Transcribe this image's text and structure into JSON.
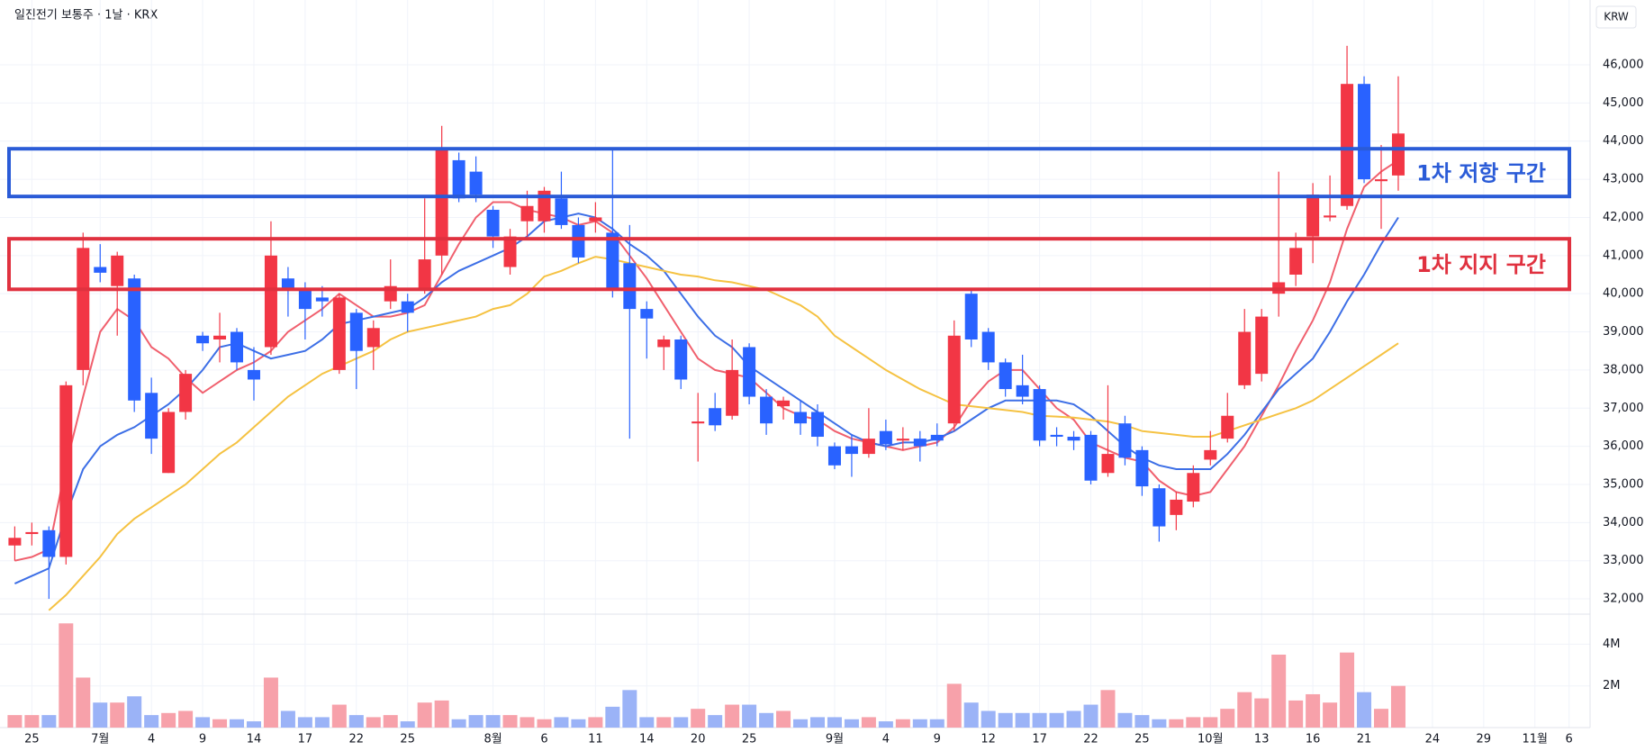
{
  "header": {
    "title": "일진전기 보통주 · 1날 · KRX",
    "currency": "KRW"
  },
  "chart_data": {
    "type": "candlestick",
    "categories": [
      null,
      "25",
      null,
      null,
      null,
      "7월",
      null,
      null,
      "4",
      null,
      null,
      "9",
      null,
      null,
      "14",
      null,
      null,
      "17",
      null,
      null,
      "22",
      null,
      null,
      "25",
      null,
      null,
      null,
      null,
      "8월",
      null,
      null,
      "6",
      null,
      null,
      "11",
      null,
      null,
      "14",
      null,
      null,
      "20",
      null,
      null,
      "25",
      null,
      null,
      null,
      null,
      "9월",
      null,
      null,
      "4",
      null,
      null,
      "9",
      null,
      null,
      "12",
      null,
      null,
      "17",
      null,
      null,
      "22",
      null,
      null,
      "25",
      null,
      null,
      null,
      "10월",
      null,
      null,
      "13",
      null,
      null,
      "16",
      null,
      null,
      "21",
      null,
      null,
      null,
      "24",
      null,
      null,
      "29",
      null,
      null,
      "11월",
      null,
      "6"
    ],
    "open": [
      33400,
      33700,
      33800,
      33100,
      38000,
      40700,
      40200,
      40400,
      37400,
      35300,
      36900,
      38900,
      38800,
      39000,
      38000,
      38600,
      40400,
      40100,
      39900,
      38000,
      39500,
      38600,
      39800,
      39800,
      40100,
      41000,
      43500,
      43200,
      42200,
      40700,
      41900,
      41900,
      42500,
      41800,
      41900,
      41600,
      40800,
      39600,
      38600,
      38800,
      36600,
      37000,
      36800,
      38600,
      37300,
      37050,
      36900,
      36900,
      36000,
      36000,
      35800,
      36400,
      36150,
      36200,
      36300,
      36600,
      40000,
      39000,
      38200,
      37600,
      37500,
      36300,
      36250,
      36300,
      35300,
      36600,
      35900,
      34900,
      34200,
      34550,
      35650,
      36200,
      37600,
      37900,
      40000,
      40500,
      41500,
      42000,
      42300,
      45500,
      42950,
      43100,
      null,
      null,
      null,
      null,
      null,
      null,
      null,
      null,
      null,
      null
    ],
    "high": [
      33900,
      34000,
      33900,
      37700,
      41600,
      41300,
      41100,
      40500,
      37800,
      37000,
      38000,
      39000,
      39500,
      39100,
      38600,
      41900,
      40700,
      40300,
      40200,
      40000,
      39600,
      39300,
      40900,
      40000,
      42500,
      44400,
      43700,
      43600,
      42300,
      41700,
      42700,
      42800,
      43200,
      42000,
      42400,
      43800,
      41800,
      39800,
      38900,
      38900,
      37400,
      37400,
      38800,
      38700,
      37500,
      37300,
      37200,
      37100,
      36100,
      36300,
      37000,
      36700,
      36500,
      36400,
      36600,
      39300,
      40100,
      39100,
      38300,
      38400,
      37600,
      36500,
      36400,
      36400,
      37600,
      36800,
      36000,
      35000,
      34800,
      35500,
      36400,
      37400,
      39600,
      39600,
      43200,
      41600,
      42900,
      43100,
      46500,
      45700,
      43900,
      45700,
      null,
      null,
      null,
      null,
      null,
      null,
      null,
      null,
      null,
      null
    ],
    "low": [
      33000,
      33400,
      32000,
      32900,
      37600,
      40300,
      38900,
      36900,
      35800,
      35300,
      36700,
      38500,
      38200,
      38000,
      37200,
      38400,
      39400,
      38800,
      39400,
      37900,
      37500,
      38000,
      39600,
      39000,
      40000,
      40500,
      42400,
      42400,
      41200,
      40500,
      41500,
      41600,
      41700,
      40800,
      41600,
      39900,
      36200,
      38300,
      38000,
      37500,
      35600,
      36400,
      36700,
      37100,
      36300,
      36700,
      36300,
      36000,
      35400,
      35200,
      35700,
      35900,
      35900,
      35600,
      36000,
      36400,
      38600,
      38000,
      37300,
      37100,
      36000,
      36000,
      35900,
      35000,
      35200,
      35500,
      34700,
      33500,
      33800,
      34400,
      35500,
      36100,
      37500,
      37700,
      39400,
      40200,
      40800,
      41900,
      42200,
      42900,
      41700,
      42700,
      null,
      null,
      null,
      null,
      null,
      null,
      null,
      null,
      null,
      null
    ],
    "close": [
      33600,
      33750,
      33100,
      37600,
      41200,
      40550,
      41000,
      37200,
      36200,
      36900,
      37900,
      38700,
      38900,
      38200,
      37750,
      41000,
      40100,
      39600,
      39800,
      39900,
      38500,
      39100,
      40200,
      39500,
      40900,
      43800,
      42500,
      42600,
      41500,
      41500,
      42300,
      42700,
      41800,
      40950,
      42000,
      40100,
      39600,
      39350,
      38800,
      37750,
      36650,
      36550,
      38000,
      37300,
      36600,
      37200,
      36600,
      36250,
      35500,
      35800,
      36200,
      36050,
      36200,
      36000,
      36150,
      38900,
      38800,
      38200,
      37500,
      37300,
      36150,
      36250,
      36150,
      35100,
      35800,
      35700,
      34950,
      33900,
      34600,
      35300,
      35900,
      36800,
      39000,
      39400,
      40300,
      41200,
      42600,
      42050,
      45500,
      43000,
      43000,
      44200,
      null,
      null,
      null,
      null,
      null,
      null,
      null,
      null,
      null,
      null
    ],
    "up_color": "#f23645",
    "down_color": "#2962ff",
    "ylim": [
      31600,
      47700
    ],
    "yticks": [
      {
        "value": 32000,
        "label": "32,000"
      },
      {
        "value": 33000,
        "label": "33,000"
      },
      {
        "value": 34000,
        "label": "34,000"
      },
      {
        "value": 35000,
        "label": "35,000"
      },
      {
        "value": 36000,
        "label": "36,000"
      },
      {
        "value": 37000,
        "label": "37,000"
      },
      {
        "value": 38000,
        "label": "38,000"
      },
      {
        "value": 39000,
        "label": "39,000"
      },
      {
        "value": 40000,
        "label": "40,000"
      },
      {
        "value": 41000,
        "label": "41,000"
      },
      {
        "value": 42000,
        "label": "42,000"
      },
      {
        "value": 43000,
        "label": "43,000"
      },
      {
        "value": 44000,
        "label": "44,000"
      },
      {
        "value": 45000,
        "label": "45,000"
      },
      {
        "value": 46000,
        "label": "46,000"
      }
    ],
    "grid": true,
    "moving_averages": [
      {
        "color": "#f0606e",
        "values": [
          33000,
          33100,
          33300,
          35500,
          37300,
          39000,
          39600,
          39300,
          38600,
          38300,
          37800,
          37400,
          37700,
          38000,
          38200,
          38500,
          39000,
          39300,
          39600,
          40000,
          39700,
          39400,
          39400,
          39500,
          39700,
          40500,
          41300,
          42000,
          42400,
          42400,
          42200,
          42100,
          42000,
          41800,
          41900,
          41600,
          41000,
          40400,
          39700,
          39000,
          38300,
          38000,
          37900,
          37800,
          37400,
          37000,
          36800,
          36700,
          36400,
          36200,
          36100,
          36000,
          35900,
          36000,
          36100,
          36500,
          37200,
          37700,
          38000,
          38000,
          37500,
          37000,
          36700,
          36100,
          35900,
          35700,
          35600,
          35100,
          34800,
          34700,
          34800,
          35400,
          36000,
          36800,
          37600,
          38500,
          39300,
          40300,
          41700,
          42800,
          43200,
          43500,
          null,
          null,
          null,
          null,
          null,
          null,
          null,
          null,
          null,
          null
        ]
      },
      {
        "color": "#3d6fe6",
        "values": [
          32400,
          32600,
          32800,
          34200,
          35400,
          36000,
          36300,
          36500,
          36800,
          37100,
          37500,
          38000,
          38600,
          38700,
          38500,
          38300,
          38400,
          38500,
          38800,
          39200,
          39300,
          39400,
          39500,
          39600,
          39900,
          40300,
          40600,
          40800,
          41000,
          41200,
          41500,
          41900,
          42000,
          42100,
          42000,
          41700,
          41300,
          41000,
          40600,
          40000,
          39400,
          38900,
          38600,
          38100,
          37800,
          37500,
          37200,
          36900,
          36600,
          36300,
          36100,
          36000,
          36100,
          36100,
          36200,
          36400,
          36700,
          37000,
          37200,
          37200,
          37200,
          37200,
          37100,
          36800,
          36400,
          36000,
          35700,
          35500,
          35400,
          35400,
          35400,
          35800,
          36300,
          36900,
          37500,
          37900,
          38300,
          39000,
          39800,
          40500,
          41300,
          42000,
          null,
          null,
          null,
          null,
          null,
          null,
          null,
          null,
          null,
          null
        ]
      },
      {
        "color": "#f5c242",
        "values": [
          null,
          null,
          31700,
          32100,
          32600,
          33100,
          33700,
          34100,
          34400,
          34700,
          35000,
          35400,
          35800,
          36100,
          36500,
          36900,
          37300,
          37600,
          37900,
          38100,
          38300,
          38500,
          38800,
          39000,
          39100,
          39200,
          39300,
          39400,
          39600,
          39700,
          40000,
          40450,
          40600,
          40800,
          40970,
          40900,
          40800,
          40700,
          40600,
          40500,
          40450,
          40350,
          40300,
          40200,
          40100,
          39900,
          39700,
          39400,
          38900,
          38600,
          38300,
          38000,
          37750,
          37500,
          37300,
          37100,
          37050,
          37000,
          36950,
          36900,
          36800,
          36780,
          36750,
          36700,
          36650,
          36550,
          36400,
          36350,
          36300,
          36250,
          36250,
          36400,
          36550,
          36700,
          36850,
          37000,
          37200,
          37500,
          37800,
          38100,
          38400,
          38700,
          null,
          null,
          null,
          null,
          null,
          null,
          null,
          null,
          null,
          null
        ]
      }
    ],
    "volume": {
      "values": [
        600000,
        600000,
        600000,
        5000000,
        2400000,
        1200000,
        1200000,
        1500000,
        600000,
        700000,
        800000,
        500000,
        400000,
        400000,
        300000,
        2400000,
        800000,
        500000,
        500000,
        1100000,
        600000,
        500000,
        600000,
        300000,
        1200000,
        1300000,
        400000,
        600000,
        600000,
        600000,
        500000,
        400000,
        500000,
        400000,
        500000,
        1000000,
        1800000,
        500000,
        500000,
        500000,
        900000,
        600000,
        1100000,
        1100000,
        700000,
        800000,
        400000,
        500000,
        500000,
        400000,
        500000,
        300000,
        400000,
        400000,
        400000,
        2100000,
        1200000,
        800000,
        700000,
        700000,
        700000,
        700000,
        800000,
        1100000,
        1800000,
        700000,
        600000,
        400000,
        400000,
        500000,
        500000,
        900000,
        1700000,
        1400000,
        3500000,
        1300000,
        1600000,
        1200000,
        3600000,
        1700000,
        900000,
        2000000,
        null,
        null,
        null,
        null,
        null,
        null,
        null,
        null,
        null,
        null
      ],
      "up_color": "#f7a1aa",
      "down_color": "#9bb3f7",
      "ylim": [
        0,
        5400000
      ],
      "yticks": [
        {
          "value": 2000000,
          "label": "2M"
        },
        {
          "value": 4000000,
          "label": "4M"
        }
      ]
    },
    "zones": [
      {
        "label": "1차 저항 구간",
        "color": "#2a5bd7",
        "top": 43800,
        "bottom": 42550
      },
      {
        "label": "1차 지지 구간",
        "color": "#e0313f",
        "top": 41440,
        "bottom": 40115
      }
    ]
  }
}
